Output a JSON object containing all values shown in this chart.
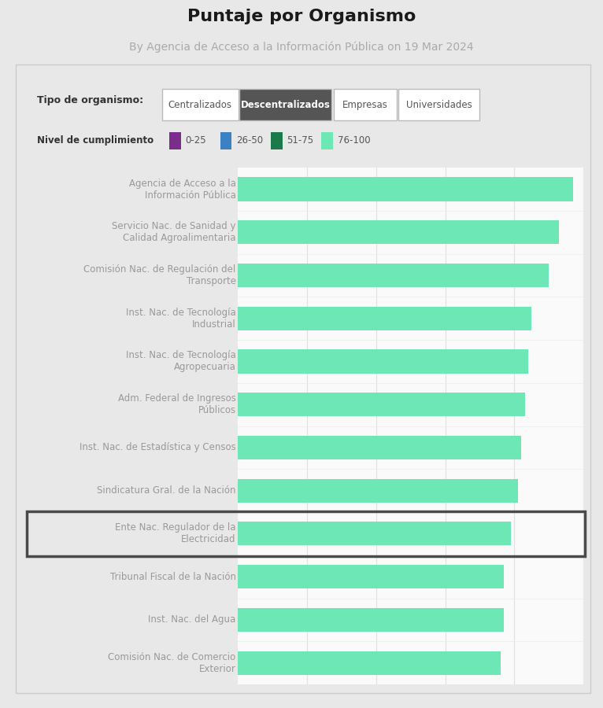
{
  "title": "Puntaje por Organismo",
  "subtitle": "By Agencia de Acceso a la Información Pública on 19 Mar 2024",
  "tab_labels": [
    "Centralizados",
    "Descentralizados",
    "Empresas",
    "Universidades"
  ],
  "active_tab": 1,
  "legend_label": "Nivel de cumplimiento",
  "legend_items": [
    {
      "label": "0-25",
      "color": "#7B2D8B"
    },
    {
      "label": "26-50",
      "color": "#3B82C4"
    },
    {
      "label": "51-75",
      "color": "#1A7A4A"
    },
    {
      "label": "76-100",
      "color": "#6EE7B7"
    }
  ],
  "categories": [
    "Agencia de Acceso a la\nInformación Pública",
    "Servicio Nac. de Sanidad y\nCalidad Agroalimentaria",
    "Comisión Nac. de Regulación del\nTransporte",
    "Inst. Nac. de Tecnología\nIndustrial",
    "Inst. Nac. de Tecnología\nAgropecuaria",
    "Adm. Federal de Ingresos\nPúblicos",
    "Inst. Nac. de Estadística y Censos",
    "Sindicatura Gral. de la Nación",
    "Ente Nac. Regulador de la\nElectricidad",
    "Tribunal Fiscal de la Nación",
    "Inst. Nac. del Agua",
    "Comisión Nac. de Comercio\nExterior"
  ],
  "values": [
    97,
    93,
    90,
    85,
    84,
    83,
    82,
    81,
    79,
    77,
    77,
    76
  ],
  "bar_color": "#6EE7B7",
  "highlighted_index": 8,
  "highlight_box_color": "#4a4a4a",
  "background_color": "#e8e8e8",
  "chart_background": "#ffffff",
  "xlim": [
    0,
    100
  ],
  "title_fontsize": 16,
  "subtitle_fontsize": 10,
  "label_fontsize": 8.5
}
